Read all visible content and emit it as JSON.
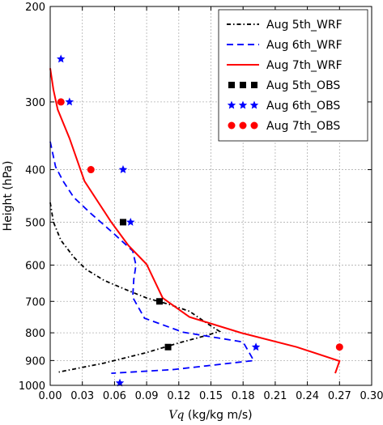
{
  "chart_data": {
    "type": "line",
    "xlabel_var": "Vq",
    "xlabel_unit": " (kg/kg m/s)",
    "ylabel": "Height (hPa)",
    "xlim": [
      0,
      0.3
    ],
    "ylim": [
      200,
      1000
    ],
    "yscale": "log",
    "y_inverted": true,
    "grid": true,
    "legend_position": "top-right",
    "x_ticks": [
      "0.00",
      "0.03",
      "0.06",
      "0.09",
      "0.12",
      "0.15",
      "0.18",
      "0.21",
      "0.24",
      "0.27",
      "0.30"
    ],
    "x_tick_values": [
      0,
      0.03,
      0.06,
      0.09,
      0.12,
      0.15,
      0.18,
      0.21,
      0.24,
      0.27,
      0.3
    ],
    "y_ticks": [
      "200",
      "300",
      "400",
      "500",
      "600",
      "700",
      "800",
      "900",
      "1000"
    ],
    "y_tick_values": [
      200,
      300,
      400,
      500,
      600,
      700,
      800,
      900,
      1000
    ],
    "series": [
      {
        "name": "Aug 5th_WRF",
        "kind": "line",
        "style": "dashdot",
        "color": "#000000",
        "points": [
          [
            0.0,
            460
          ],
          [
            0.003,
            500
          ],
          [
            0.01,
            540
          ],
          [
            0.022,
            580
          ],
          [
            0.033,
            610
          ],
          [
            0.05,
            640
          ],
          [
            0.07,
            665
          ],
          [
            0.09,
            690
          ],
          [
            0.11,
            708
          ],
          [
            0.13,
            730
          ],
          [
            0.147,
            770
          ],
          [
            0.158,
            795
          ],
          [
            0.145,
            810
          ],
          [
            0.12,
            835
          ],
          [
            0.09,
            870
          ],
          [
            0.05,
            910
          ],
          [
            0.008,
            945
          ]
        ]
      },
      {
        "name": "Aug 6th_WRF",
        "kind": "line",
        "style": "dashed",
        "color": "#0000ff",
        "points": [
          [
            0.0,
            355
          ],
          [
            0.005,
            395
          ],
          [
            0.012,
            420
          ],
          [
            0.022,
            450
          ],
          [
            0.038,
            482
          ],
          [
            0.058,
            522
          ],
          [
            0.077,
            565
          ],
          [
            0.08,
            600
          ],
          [
            0.078,
            638
          ],
          [
            0.077,
            688
          ],
          [
            0.088,
            752
          ],
          [
            0.124,
            798
          ],
          [
            0.18,
            832
          ],
          [
            0.19,
            900
          ],
          [
            0.115,
            935
          ],
          [
            0.057,
            950
          ]
        ]
      },
      {
        "name": "Aug 7th_WRF",
        "kind": "line",
        "style": "solid",
        "color": "#ff0000",
        "points": [
          [
            0.0,
            260
          ],
          [
            0.003,
            285
          ],
          [
            0.007,
            310
          ],
          [
            0.018,
            350
          ],
          [
            0.032,
            420
          ],
          [
            0.057,
            500
          ],
          [
            0.073,
            552
          ],
          [
            0.09,
            598
          ],
          [
            0.105,
            690
          ],
          [
            0.13,
            748
          ],
          [
            0.178,
            800
          ],
          [
            0.23,
            850
          ],
          [
            0.27,
            902
          ],
          [
            0.266,
            950
          ]
        ]
      },
      {
        "name": "Aug 5th_OBS",
        "kind": "markers",
        "marker": "square",
        "color": "#000000",
        "points": [
          [
            0.068,
            500
          ],
          [
            0.102,
            700
          ],
          [
            0.11,
            850
          ]
        ]
      },
      {
        "name": "Aug 6th_OBS",
        "kind": "markers",
        "marker": "star",
        "color": "#0000ff",
        "points": [
          [
            0.01,
            250
          ],
          [
            0.018,
            300
          ],
          [
            0.068,
            400
          ],
          [
            0.075,
            500
          ],
          [
            0.192,
            850
          ],
          [
            0.065,
            990
          ]
        ]
      },
      {
        "name": "Aug 7th_OBS",
        "kind": "markers",
        "marker": "circle",
        "color": "#ff0000",
        "points": [
          [
            0.01,
            300
          ],
          [
            0.038,
            400
          ],
          [
            0.27,
            850
          ]
        ]
      }
    ]
  }
}
